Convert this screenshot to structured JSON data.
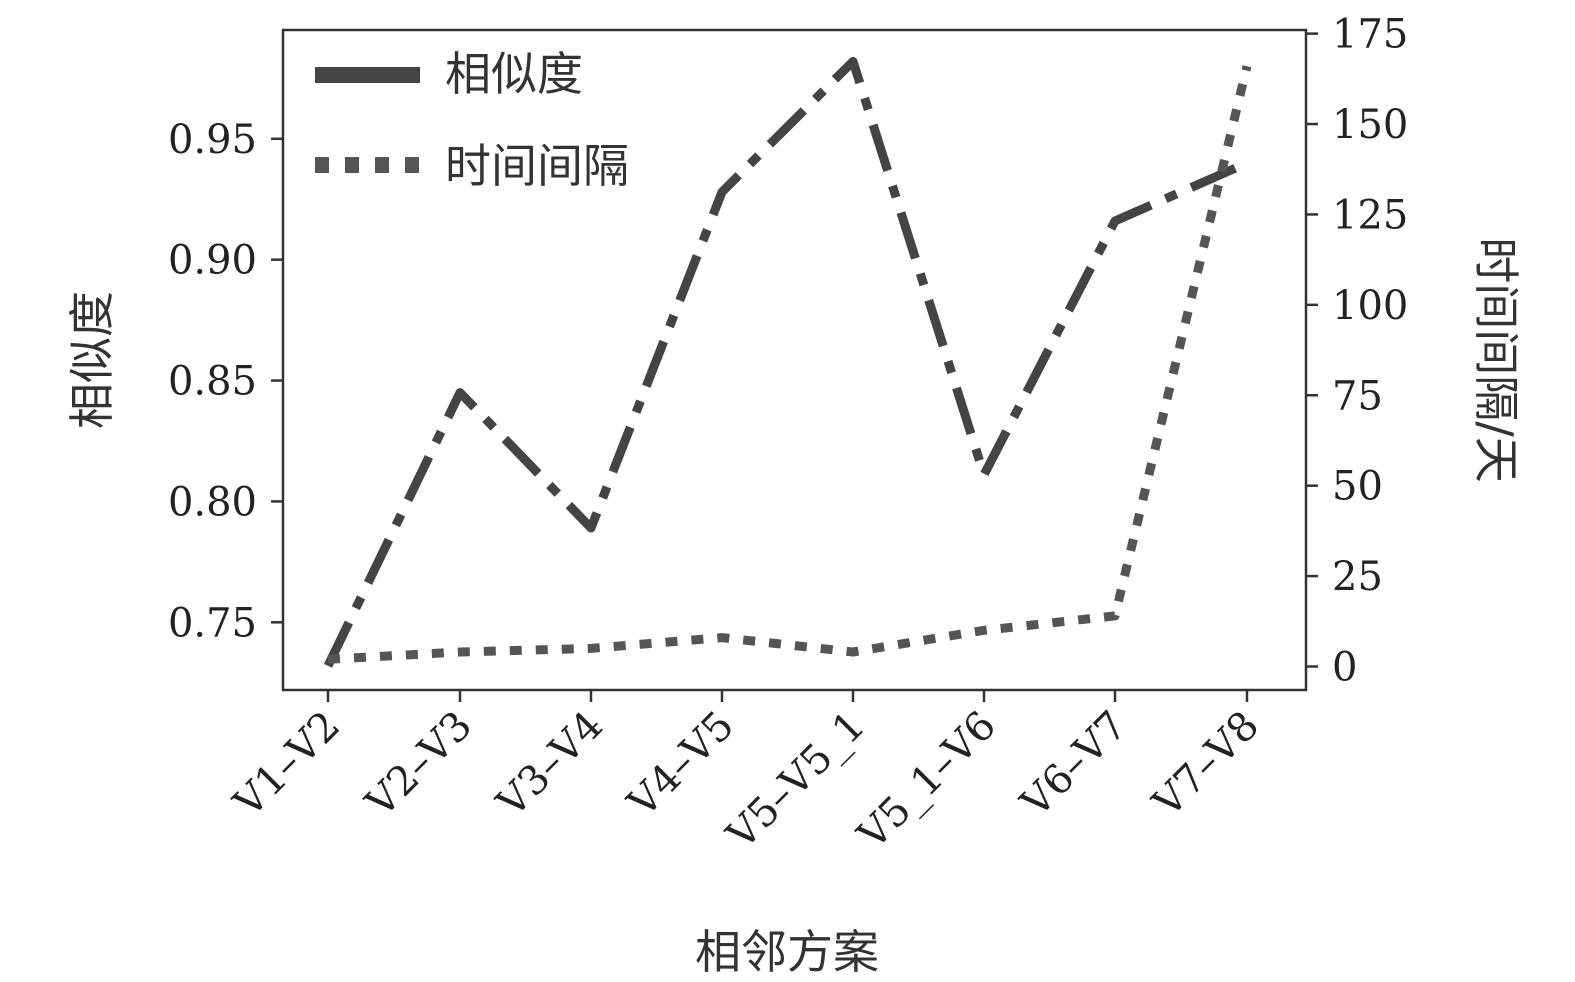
{
  "chart_data": {
    "type": "line",
    "categories": [
      "V1–V2",
      "V2–V3",
      "V3–V4",
      "V4–V5",
      "V5–V5_1",
      "V5_1–V6",
      "V6–V7",
      "V7–V8"
    ],
    "xlabel": "相邻方案",
    "ylabel": "相似度",
    "y2label": "时间间隔/天",
    "ylim": [
      0.722,
      0.995
    ],
    "y2lim": [
      -6.5,
      176
    ],
    "yticks": [
      "0.75",
      "0.80",
      "0.85",
      "0.90",
      "0.95"
    ],
    "y2ticks": [
      "0",
      "25",
      "50",
      "75",
      "100",
      "125",
      "150",
      "175"
    ],
    "grid": false,
    "legend": "top-left",
    "series": [
      {
        "name": "相似度",
        "axis": "left",
        "style": "dash-dot",
        "color": "#444444",
        "values": [
          0.732,
          0.845,
          0.789,
          0.928,
          0.982,
          0.811,
          0.916,
          0.94
        ]
      },
      {
        "name": "时间间隔",
        "axis": "right",
        "style": "dotted",
        "color": "#555555",
        "values": [
          2,
          4,
          5,
          8,
          4,
          10,
          14,
          166
        ]
      }
    ]
  }
}
